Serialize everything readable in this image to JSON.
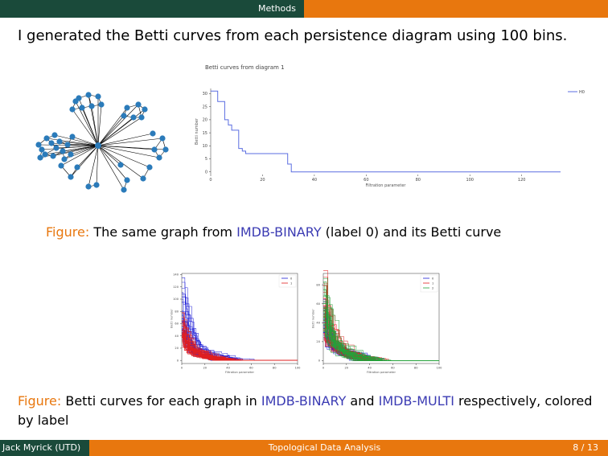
{
  "header": {
    "section": "Methods"
  },
  "statement": "I generated the Betti curves from each persistence diagram using 100 bins.",
  "figure1": {
    "caption_label": "Figure:",
    "caption_pre": "The same graph from ",
    "caption_dataset": "IMDB-BINARY",
    "caption_post": " (label 0) and its Betti curve",
    "chart_data": {
      "type": "line",
      "title": "Betti curves from diagram 1",
      "xlabel": "Filtration parameter",
      "ylabel": "Betti number",
      "xlim": [
        0,
        135
      ],
      "ylim": [
        -1,
        32
      ],
      "xticks": [
        0,
        20,
        40,
        60,
        80,
        100,
        120
      ],
      "yticks": [
        0,
        5,
        10,
        15,
        20,
        25,
        30
      ],
      "legend_position": "top-right",
      "series": [
        {
          "name": "H0",
          "color": "#5b6ee1",
          "x": [
            0,
            2.7,
            2.7,
            5.4,
            5.4,
            6.8,
            6.8,
            8.1,
            8.1,
            10.8,
            10.8,
            12.2,
            12.2,
            13.5,
            13.5,
            29.7,
            29.7,
            31.1,
            31.1,
            135
          ],
          "y": [
            31,
            31,
            27,
            27,
            20,
            20,
            18,
            18,
            16,
            16,
            9,
            9,
            8,
            8,
            7,
            7,
            3,
            3,
            0,
            0
          ]
        }
      ]
    }
  },
  "figure2": {
    "caption_label": "Figure:",
    "caption_pre": "Betti curves for each graph in ",
    "caption_ds1": "IMDB-BINARY",
    "caption_mid": " and ",
    "caption_ds2": "IMDB-MULTI",
    "caption_post": " respectively, colored by label",
    "chart_data": [
      {
        "type": "line",
        "xlabel": "Filtration parameter",
        "ylabel": "Betti number",
        "xlim": [
          0,
          100
        ],
        "ylim": [
          -5,
          142
        ],
        "xticks": [
          0,
          20,
          40,
          60,
          80,
          100
        ],
        "yticks": [
          0,
          20,
          40,
          60,
          80,
          100,
          120,
          140
        ],
        "legend_position": "top-right",
        "series": [
          {
            "name": "0",
            "color": "#1f1fd6",
            "peaks": [
              135,
              118,
              95,
              80,
              68,
              62,
              55,
              50,
              46,
              42
            ]
          },
          {
            "name": "1",
            "color": "#e11f1f",
            "peaks": [
              78,
              70,
              65,
              58,
              52,
              48,
              45,
              40,
              36,
              32
            ]
          }
        ]
      },
      {
        "type": "line",
        "xlabel": "Filtration parameter",
        "ylabel": "Betti number",
        "xlim": [
          0,
          100
        ],
        "ylim": [
          -3,
          92
        ],
        "xticks": [
          0,
          20,
          40,
          60,
          80,
          100
        ],
        "yticks": [
          0,
          20,
          40,
          60,
          80
        ],
        "legend_position": "top-right",
        "series": [
          {
            "name": "0",
            "color": "#1f1fd6",
            "peaks": [
              62,
              55,
              48,
              44,
              40,
              38,
              35,
              30
            ]
          },
          {
            "name": "1",
            "color": "#e11f1f",
            "peaks": [
              88,
              72,
              65,
              58,
              52,
              46,
              40,
              36
            ]
          },
          {
            "name": "2",
            "color": "#23a23a",
            "peaks": [
              82,
              75,
              68,
              60,
              54,
              48,
              42,
              38
            ]
          }
        ]
      }
    ]
  },
  "footer": {
    "author": "Jack Myrick  (UTD)",
    "title": "Topological Data Analysis",
    "page": "8 / 13"
  }
}
